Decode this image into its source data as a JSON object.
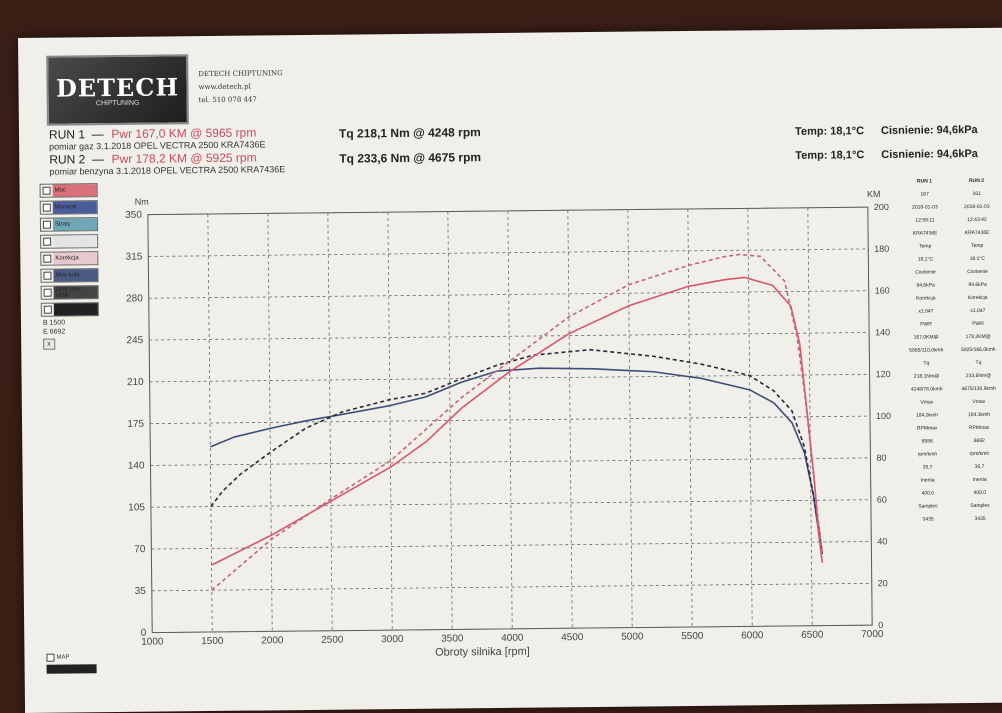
{
  "header": {
    "logo_text": "DETECH",
    "logo_sub": "CHIPTUNING",
    "company": "DETECH CHIPTUNING",
    "website": "www.detech.pl",
    "phone": "tel. 510 078 447"
  },
  "runs": [
    {
      "label": "RUN 1",
      "pwr": "Pwr 167,0 KM @ 5965 rpm",
      "tq": "Tq 218,1 Nm @ 4248 rpm",
      "desc": "pomiar gaz 3.1.2018 OPEL VECTRA 2500 KRA7436E",
      "temp": "Temp: 18,1°C",
      "press": "Cisnienie: 94,6kPa"
    },
    {
      "label": "RUN 2",
      "pwr": "Pwr 178,2 KM @ 5925 rpm",
      "tq": "Tq 233,6 Nm @ 4675 rpm",
      "desc": "pomiar benzyna 3.1.2018 OPEL VECTRA 2500 KRA7436E",
      "temp": "Temp: 18,1°C",
      "press": "Cisnienie: 94,6kPa"
    }
  ],
  "legend": [
    {
      "label": "Moc",
      "color": "#d9707a"
    },
    {
      "label": "Moment",
      "color": "#4a5d9a"
    },
    {
      "label": "Straty",
      "color": "#6fa6b8"
    },
    {
      "label": "",
      "color": "#e4e4e4"
    },
    {
      "label": "Korekcja",
      "color": "#e9c7cf"
    },
    {
      "label": "Moc koła",
      "color": "#4a5a82"
    },
    {
      "label": "Zew. moc. silnik",
      "color": "#444444"
    },
    {
      "label": "",
      "color": "#222222"
    }
  ],
  "side": {
    "line1": "B 1500",
    "line2": "E 6692",
    "button": "x"
  },
  "map_label": "MAP",
  "table": {
    "col1": [
      "RUN 1",
      "167",
      "2018-01-03",
      "12:59:11",
      "KRA7436E",
      "Temp",
      "18,1°C",
      "Cisnienie",
      "94,6kPa",
      "Korekcja",
      "x1,047",
      "PWR",
      "167,0KM@",
      "5965/110,0kmh",
      "",
      "Tq",
      "218,1Nm@",
      "4248/78,0kmh",
      "Vmax",
      "184,0kmh",
      "RPMmax",
      "6586",
      "rpm/kmh",
      "35,7",
      "Inertia",
      "400,0",
      "Samples",
      "3435"
    ],
    "col2": [
      "RUN 2",
      "161",
      "2018-01-03",
      "12:43:42",
      "KRA7436E",
      "Temp",
      "18,1°C",
      "Cisnienie",
      "94,6kPa",
      "Korekcja",
      "x1,047",
      "PWR",
      "178,2KM@",
      "5925/166,0kmh",
      "",
      "Tq",
      "233,6Nm@",
      "4675/130,9kmh",
      "Vmax",
      "184,3kmh",
      "RPMmax",
      "6692",
      "rpm/kmh",
      "35,7",
      "Inertia",
      "400,0",
      "Samples",
      "3435"
    ]
  },
  "chart_data": {
    "type": "line",
    "xlabel": "Obroty silnika [rpm]",
    "y_left_label": "Nm",
    "y_right_label": "KM",
    "xlim": [
      1000,
      7000
    ],
    "ylim_left": [
      0,
      350
    ],
    "ylim_right": [
      0,
      200
    ],
    "x_ticks": [
      1000,
      1500,
      2000,
      2500,
      3000,
      3500,
      4000,
      4500,
      5000,
      5500,
      6000,
      6500,
      7000
    ],
    "y_left_ticks": [
      0,
      35,
      70,
      105,
      140,
      175,
      210,
      245,
      280,
      315,
      350
    ],
    "y_right_ticks": [
      0,
      20,
      40,
      60,
      80,
      100,
      120,
      140,
      160,
      180,
      200
    ],
    "series": [
      {
        "name": "RUN 1",
        "kind": "torque",
        "axis": "left",
        "color": "#3d4f7a",
        "dash": false,
        "x": [
          1500,
          1700,
          2000,
          2300,
          2600,
          3000,
          3300,
          3600,
          3900,
          4250,
          4700,
          5200,
          5600,
          6000,
          6200,
          6350,
          6450,
          6520,
          6560,
          6590
        ],
        "y": [
          155,
          163,
          170,
          176,
          181,
          188,
          195,
          207,
          216,
          218,
          217,
          214,
          208,
          198,
          187,
          170,
          145,
          110,
          80,
          60
        ]
      },
      {
        "name": "RUN 2",
        "kind": "torque",
        "axis": "left",
        "color": "#2a2a3a",
        "dash": true,
        "x": [
          1500,
          1600,
          1750,
          2000,
          2300,
          2600,
          3000,
          3300,
          3600,
          3900,
          4200,
          4675,
          5200,
          5600,
          6000,
          6200,
          6350,
          6450,
          6520,
          6560,
          6590
        ],
        "y": [
          105,
          118,
          132,
          150,
          170,
          183,
          193,
          198,
          210,
          221,
          229,
          233,
          227,
          220,
          210,
          197,
          180,
          150,
          110,
          85,
          60
        ]
      },
      {
        "name": "RUN 1",
        "kind": "power",
        "axis": "right",
        "color": "#d9566b",
        "dash": false,
        "x": [
          1500,
          2000,
          2500,
          3000,
          3300,
          3600,
          4000,
          4500,
          5000,
          5500,
          5800,
          5965,
          6200,
          6350,
          6420,
          6480,
          6530,
          6560,
          6590
        ],
        "y": [
          32,
          46,
          62,
          78,
          90,
          106,
          123,
          141,
          154,
          163,
          166,
          167,
          163,
          153,
          135,
          100,
          70,
          45,
          30
        ]
      },
      {
        "name": "RUN 2",
        "kind": "power",
        "axis": "right",
        "color": "#c86478",
        "dash": true,
        "x": [
          1500,
          2000,
          2500,
          3000,
          3300,
          3600,
          4000,
          4500,
          5000,
          5500,
          5800,
          5925,
          6100,
          6300,
          6400,
          6460,
          6520,
          6560,
          6590
        ],
        "y": [
          20,
          44,
          63,
          81,
          96,
          111,
          128,
          149,
          164,
          173,
          177,
          178,
          177,
          165,
          138,
          110,
          75,
          50,
          35
        ]
      }
    ]
  }
}
